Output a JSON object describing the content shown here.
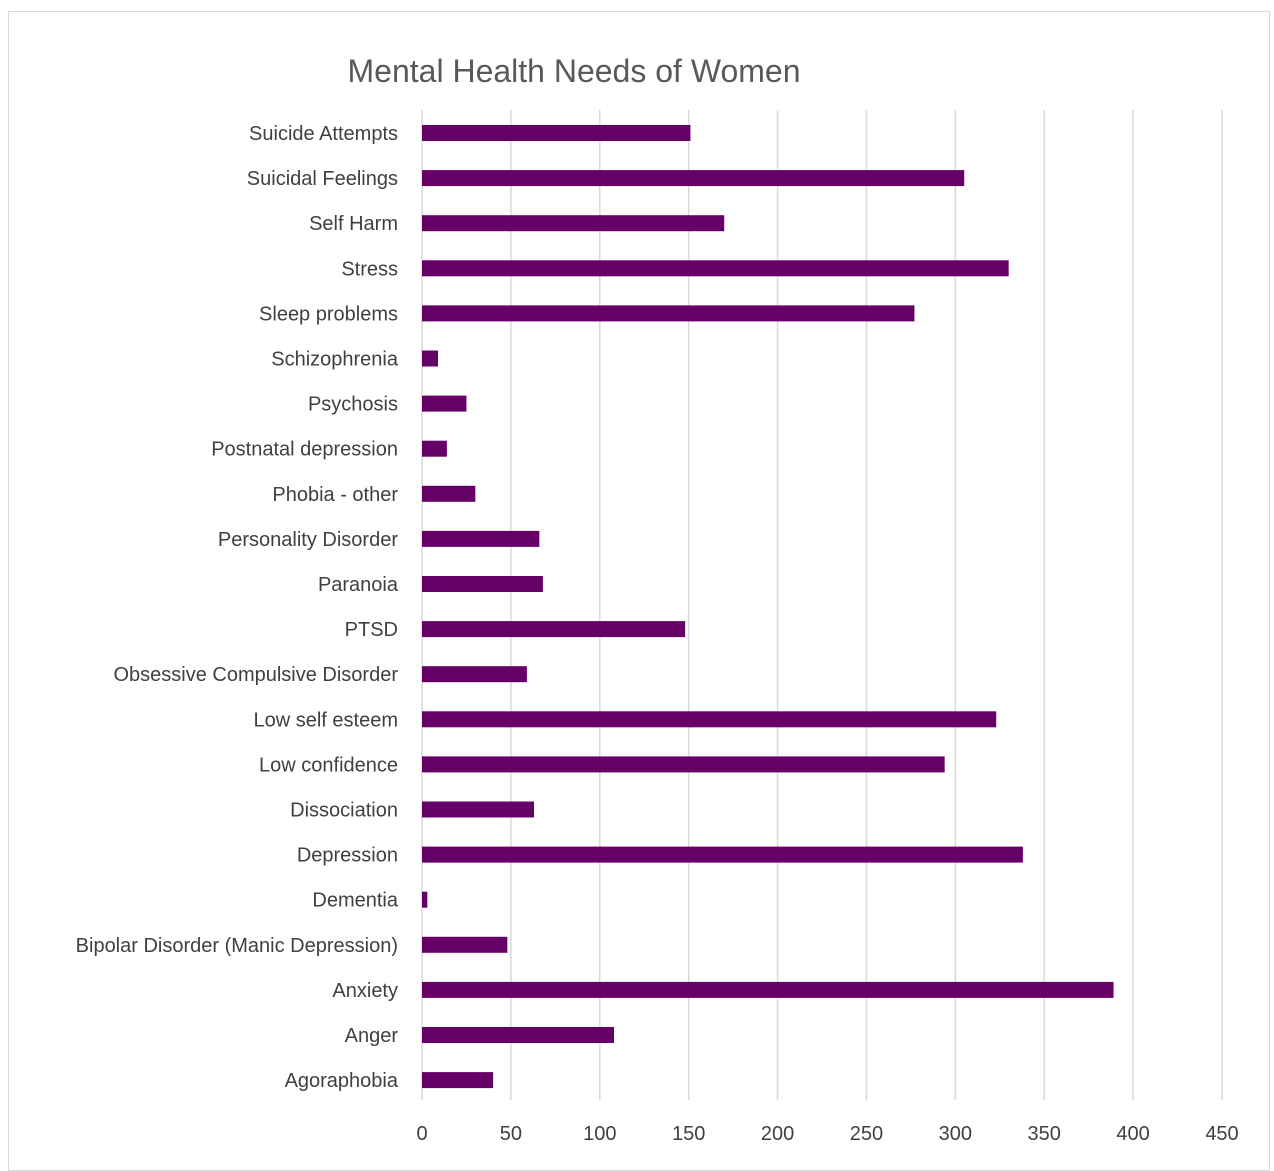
{
  "chart_data": {
    "type": "bar",
    "orientation": "horizontal",
    "title": "Mental Health Needs of Women",
    "xlabel": "",
    "ylabel": "",
    "categories": [
      "Suicide Attempts",
      "Suicidal Feelings",
      "Self Harm",
      "Stress",
      "Sleep problems",
      "Schizophrenia",
      "Psychosis",
      "Postnatal depression",
      "Phobia - other",
      "Personality Disorder",
      "Paranoia",
      "PTSD",
      "Obsessive Compulsive Disorder",
      "Low self esteem",
      "Low confidence",
      "Dissociation",
      "Depression",
      "Dementia",
      "Bipolar Disorder (Manic Depression)",
      "Anxiety",
      "Anger",
      "Agoraphobia"
    ],
    "values": [
      151,
      305,
      170,
      330,
      277,
      9,
      25,
      14,
      30,
      66,
      68,
      148,
      59,
      323,
      294,
      63,
      338,
      3,
      48,
      389,
      108,
      40
    ],
    "xlim": [
      0,
      450
    ],
    "xticks": [
      "0",
      "50",
      "100",
      "150",
      "200",
      "250",
      "300",
      "350",
      "400",
      "450"
    ],
    "grid": "vertical",
    "legend": "none",
    "bar_color": "#660066"
  }
}
